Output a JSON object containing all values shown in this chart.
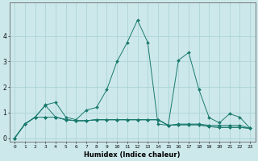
{
  "xlabel": "Humidex (Indice chaleur)",
  "background_color": "#cce8eb",
  "grid_color": "#a8d0d4",
  "line_color": "#1a7a6e",
  "x_values": [
    0,
    1,
    2,
    3,
    4,
    5,
    6,
    7,
    8,
    9,
    10,
    11,
    12,
    13,
    14,
    15,
    16,
    17,
    18,
    19,
    20,
    21,
    22,
    23
  ],
  "series": [
    [
      0.0,
      0.55,
      0.82,
      1.3,
      1.4,
      0.82,
      0.72,
      1.1,
      1.2,
      1.9,
      3.0,
      3.75,
      4.62,
      3.75,
      0.55,
      0.5,
      3.05,
      3.35,
      1.9,
      0.8,
      0.6,
      0.95,
      0.82,
      0.38
    ],
    [
      0.0,
      0.55,
      0.82,
      1.28,
      0.82,
      0.72,
      0.68,
      0.68,
      0.72,
      0.72,
      0.72,
      0.72,
      0.72,
      0.72,
      0.72,
      0.5,
      0.55,
      0.55,
      0.55,
      0.5,
      0.5,
      0.5,
      0.5,
      0.38
    ],
    [
      0.0,
      0.55,
      0.82,
      0.82,
      0.82,
      0.72,
      0.68,
      0.68,
      0.72,
      0.72,
      0.72,
      0.72,
      0.72,
      0.72,
      0.72,
      0.5,
      0.52,
      0.52,
      0.52,
      0.45,
      0.42,
      0.42,
      0.42,
      0.38
    ],
    [
      0.0,
      0.55,
      0.82,
      0.82,
      0.82,
      0.72,
      0.68,
      0.68,
      0.72,
      0.72,
      0.72,
      0.72,
      0.72,
      0.72,
      0.72,
      0.5,
      0.52,
      0.52,
      0.52,
      0.45,
      0.42,
      0.42,
      0.42,
      0.38
    ]
  ],
  "ylim": [
    -0.15,
    5.3
  ],
  "xlim": [
    -0.5,
    23.5
  ],
  "yticks": [
    0,
    1,
    2,
    3,
    4
  ],
  "xticks": [
    0,
    1,
    2,
    3,
    4,
    5,
    6,
    7,
    8,
    9,
    10,
    11,
    12,
    13,
    14,
    15,
    16,
    17,
    18,
    19,
    20,
    21,
    22,
    23
  ]
}
